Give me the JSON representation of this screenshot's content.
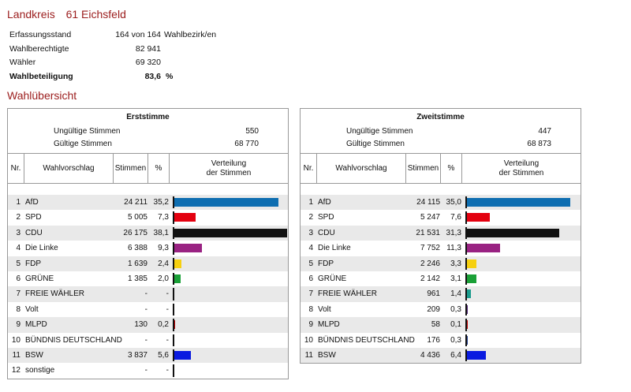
{
  "header": {
    "title": "Landkreis",
    "district_number": "61 Eichsfeld"
  },
  "summary": [
    {
      "label": "Erfassungsstand",
      "value": "164 von 164",
      "extra": "Wahlbezirk/en",
      "bold": false
    },
    {
      "label": "Wahlberechtigte",
      "value": "82 941",
      "extra": "",
      "bold": false
    },
    {
      "label": "Wähler",
      "value": "69 320",
      "extra": "",
      "bold": false
    },
    {
      "label": "Wahlbeteiligung",
      "value": "83,6",
      "extra": "%",
      "bold": true
    }
  ],
  "section_title": "Wahlübersicht",
  "columns": {
    "nr": "Nr.",
    "wahlvorschlag": "Wahlvorschlag",
    "stimmen": "Stimmen",
    "percent": "%",
    "verteilung_line1": "Verteilung",
    "verteilung_line2": "der Stimmen"
  },
  "erststimme": {
    "heading": "Erststimme",
    "invalid_label": "Ungültige Stimmen",
    "invalid_value": "550",
    "valid_label": "Gültige Stimmen",
    "valid_value": "68 770",
    "rows": [
      {
        "nr": "1",
        "party": "AfD",
        "votes": "24 211",
        "percent": "35,2",
        "share": 35.2,
        "color": "#0e6eb1"
      },
      {
        "nr": "2",
        "party": "SPD",
        "votes": "5 005",
        "percent": "7,3",
        "share": 7.3,
        "color": "#e3000f"
      },
      {
        "nr": "3",
        "party": "CDU",
        "votes": "26 175",
        "percent": "38,1",
        "share": 38.1,
        "color": "#111111"
      },
      {
        "nr": "4",
        "party": "Die Linke",
        "votes": "6 388",
        "percent": "9,3",
        "share": 9.3,
        "color": "#992282"
      },
      {
        "nr": "5",
        "party": "FDP",
        "votes": "1 639",
        "percent": "2,4",
        "share": 2.4,
        "color": "#f6d010"
      },
      {
        "nr": "6",
        "party": "GRÜNE",
        "votes": "1 385",
        "percent": "2,0",
        "share": 2.0,
        "color": "#1aa037"
      },
      {
        "nr": "7",
        "party": "FREIE WÄHLER",
        "votes": "-",
        "percent": "-",
        "share": 0,
        "color": "#1a9b8c"
      },
      {
        "nr": "8",
        "party": "Volt",
        "votes": "-",
        "percent": "-",
        "share": 0,
        "color": "#502379"
      },
      {
        "nr": "9",
        "party": "MLPD",
        "votes": "130",
        "percent": "0,2",
        "share": 0.2,
        "color": "#c00000"
      },
      {
        "nr": "10",
        "party": "BÜNDNIS DEUTSCHLAND",
        "votes": "-",
        "percent": "-",
        "share": 0,
        "color": "#1e3a8a"
      },
      {
        "nr": "11",
        "party": "BSW",
        "votes": "3 837",
        "percent": "5,6",
        "share": 5.6,
        "color": "#0a1be0"
      },
      {
        "nr": "12",
        "party": "sonstige",
        "votes": "-",
        "percent": "-",
        "share": 0,
        "color": "#888888"
      }
    ]
  },
  "zweitstimme": {
    "heading": "Zweitstimme",
    "invalid_label": "Ungültige Stimmen",
    "invalid_value": "447",
    "valid_label": "Gültige Stimmen",
    "valid_value": "68 873",
    "rows": [
      {
        "nr": "1",
        "party": "AfD",
        "votes": "24 115",
        "percent": "35,0",
        "share": 35.0,
        "color": "#0e6eb1"
      },
      {
        "nr": "2",
        "party": "SPD",
        "votes": "5 247",
        "percent": "7,6",
        "share": 7.6,
        "color": "#e3000f"
      },
      {
        "nr": "3",
        "party": "CDU",
        "votes": "21 531",
        "percent": "31,3",
        "share": 31.3,
        "color": "#111111"
      },
      {
        "nr": "4",
        "party": "Die Linke",
        "votes": "7 752",
        "percent": "11,3",
        "share": 11.3,
        "color": "#992282"
      },
      {
        "nr": "5",
        "party": "FDP",
        "votes": "2 246",
        "percent": "3,3",
        "share": 3.3,
        "color": "#f6d010"
      },
      {
        "nr": "6",
        "party": "GRÜNE",
        "votes": "2 142",
        "percent": "3,1",
        "share": 3.1,
        "color": "#1aa037"
      },
      {
        "nr": "7",
        "party": "FREIE WÄHLER",
        "votes": "961",
        "percent": "1,4",
        "share": 1.4,
        "color": "#1a9b8c"
      },
      {
        "nr": "8",
        "party": "Volt",
        "votes": "209",
        "percent": "0,3",
        "share": 0.3,
        "color": "#502379"
      },
      {
        "nr": "9",
        "party": "MLPD",
        "votes": "58",
        "percent": "0,1",
        "share": 0.1,
        "color": "#c00000"
      },
      {
        "nr": "10",
        "party": "BÜNDNIS DEUTSCHLAND",
        "votes": "176",
        "percent": "0,3",
        "share": 0.3,
        "color": "#1e3a8a"
      },
      {
        "nr": "11",
        "party": "BSW",
        "votes": "4 436",
        "percent": "6,4",
        "share": 6.4,
        "color": "#0a1be0"
      }
    ]
  }
}
